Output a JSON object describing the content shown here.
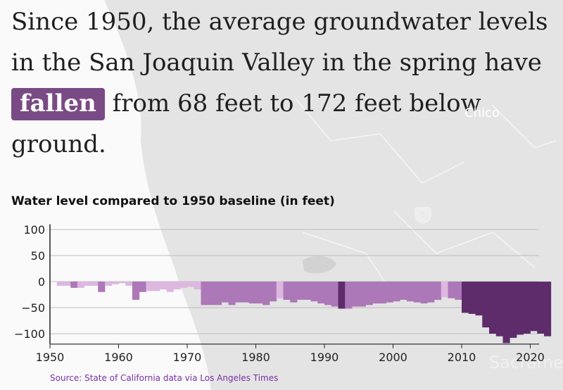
{
  "headline": {
    "before": "Since 1950, the average groundwater levels in the San Joaquin Valley in the spring have",
    "highlight": "fallen",
    "after": "from 68 feet to 172 feet below ground."
  },
  "map_labels": {
    "city1": "Chico",
    "city2": "Sacramento",
    "highway": "5"
  },
  "source": "Source: State of California data via Los Angeles Times",
  "colors": {
    "light": "#dcb7df",
    "medium": "#ac78b7",
    "dark": "#5f2c6b",
    "highlight": "#7a4a85"
  },
  "chart_data": {
    "type": "bar",
    "title": "Water level compared to 1950 baseline (in feet)",
    "xlabel": "",
    "ylabel": "",
    "ylim": [
      -120,
      110
    ],
    "xlim": [
      1950,
      2023
    ],
    "yticks": [
      100,
      50,
      0,
      -50,
      -100
    ],
    "ytick_labels": [
      "100",
      "50",
      "0",
      "−50",
      "−100"
    ],
    "xticks": [
      1950,
      1960,
      1970,
      1980,
      1990,
      2000,
      2010,
      2020
    ],
    "grid": true,
    "x": [
      1950,
      1951,
      1952,
      1953,
      1954,
      1955,
      1956,
      1957,
      1958,
      1959,
      1960,
      1961,
      1962,
      1963,
      1964,
      1965,
      1966,
      1967,
      1968,
      1969,
      1970,
      1971,
      1972,
      1973,
      1974,
      1975,
      1976,
      1977,
      1978,
      1979,
      1980,
      1981,
      1982,
      1983,
      1984,
      1985,
      1986,
      1987,
      1988,
      1989,
      1990,
      1991,
      1992,
      1993,
      1994,
      1995,
      1996,
      1997,
      1998,
      1999,
      2000,
      2001,
      2002,
      2003,
      2004,
      2005,
      2006,
      2007,
      2008,
      2009,
      2010,
      2011,
      2012,
      2013,
      2014,
      2015,
      2016,
      2017,
      2018,
      2019,
      2020,
      2021,
      2022
    ],
    "values": [
      0,
      -8,
      -8,
      -12,
      -12,
      -8,
      -8,
      -20,
      -8,
      -5,
      -3,
      -8,
      -35,
      -20,
      -18,
      -18,
      -15,
      -20,
      -15,
      -12,
      -10,
      -15,
      -45,
      -45,
      -45,
      -40,
      -45,
      -40,
      -40,
      -42,
      -42,
      -45,
      -38,
      -32,
      -35,
      -40,
      -35,
      -35,
      -38,
      -42,
      -45,
      -48,
      -52,
      -52,
      -48,
      -48,
      -45,
      -42,
      -42,
      -40,
      -38,
      -35,
      -38,
      -40,
      -42,
      -40,
      -35,
      -30,
      -32,
      -35,
      -60,
      -62,
      -65,
      -88,
      -100,
      -105,
      -118,
      -108,
      -102,
      -100,
      -95,
      -100,
      -105
    ],
    "shade": [
      "light",
      "light",
      "light",
      "medium",
      "light",
      "light",
      "light",
      "medium",
      "light",
      "light",
      "light",
      "light",
      "medium",
      "medium",
      "light",
      "light",
      "light",
      "light",
      "light",
      "light",
      "light",
      "light",
      "medium",
      "medium",
      "medium",
      "medium",
      "medium",
      "medium",
      "medium",
      "medium",
      "medium",
      "medium",
      "medium",
      "light",
      "medium",
      "medium",
      "medium",
      "medium",
      "medium",
      "medium",
      "medium",
      "medium",
      "dark",
      "medium",
      "medium",
      "medium",
      "medium",
      "medium",
      "medium",
      "medium",
      "medium",
      "medium",
      "medium",
      "medium",
      "medium",
      "medium",
      "medium",
      "light",
      "medium",
      "medium",
      "dark",
      "dark",
      "dark",
      "dark",
      "dark",
      "dark",
      "dark",
      "dark",
      "dark",
      "dark",
      "dark",
      "dark",
      "dark"
    ]
  }
}
